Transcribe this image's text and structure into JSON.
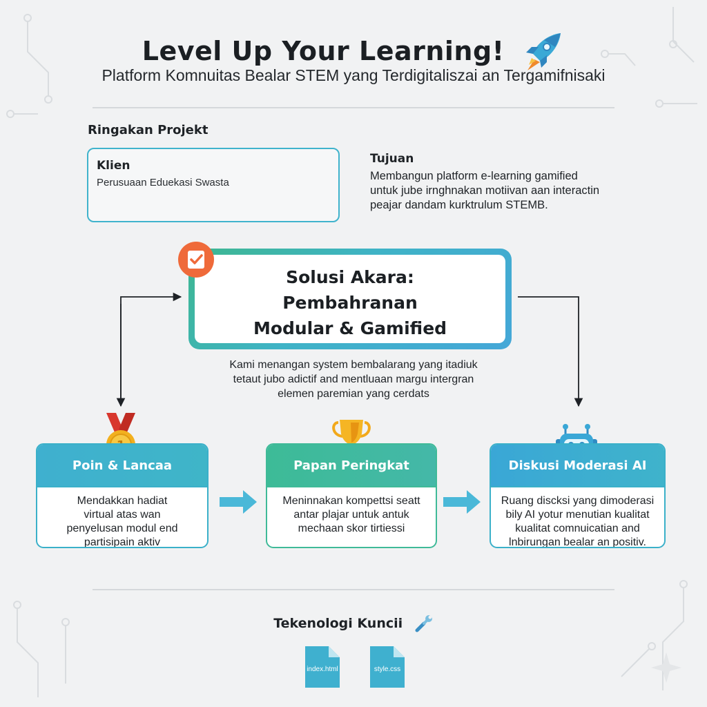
{
  "header": {
    "title": "Level Up Your Learning!",
    "subtitle": "Platform Komnuitas Bealar STEM yang Terdigitaliszai an Tergamifnisaki"
  },
  "summary": {
    "section_label": "Ringakan Projekt",
    "client_label": "Klien",
    "client_value": "Perusuaan Eduekasi Swasta",
    "goal_label": "Tujuan",
    "goal_lines": [
      "Membangun platform e-learning gamified",
      "untuk jube irnghnakan motiivan aan interactin",
      "peajar dandam kurktrulum STEMB."
    ]
  },
  "solution": {
    "title_lines": [
      "Solusi Akara:",
      "Pembahranan",
      "Modular & Gamified"
    ],
    "description_lines": [
      "Kami menangan system bembalarang yang itadiuk",
      "tetaut jubo adictif and mentluaan margu intergran",
      "elemen paremian yang cerdats"
    ]
  },
  "features": [
    {
      "title": "Poin & Lancaa",
      "icon": "medal-icon",
      "medal_number": "1",
      "lines": [
        "Mendakkan hadiat",
        "virtual atas wan",
        "penyelusan modul end",
        "partisipain aktiv"
      ]
    },
    {
      "title": "Papan Peringkat",
      "icon": "trophy-icon",
      "lines": [
        "Meninnakan kompettsi seatt",
        "antar plajar untuk antuk",
        "mechaan skor tirtiessi"
      ]
    },
    {
      "title": "Diskusi Moderasi AI",
      "icon": "robot-icon",
      "lines": [
        "Ruang discksi yang dimoderasi",
        "bily AI yotur menutian kualitat",
        "kualitat comnuicatian and",
        "lnbirungan bealar an positiv."
      ]
    }
  ],
  "tech": {
    "label": "Tekenologi Kuncii",
    "files": [
      "index.html",
      "style.css"
    ]
  },
  "colors": {
    "teal": "#3fb3cc",
    "green": "#3dbb97",
    "blue": "#45a7d8",
    "orange": "#ef6a3a",
    "arrow": "#4ab8d8"
  }
}
